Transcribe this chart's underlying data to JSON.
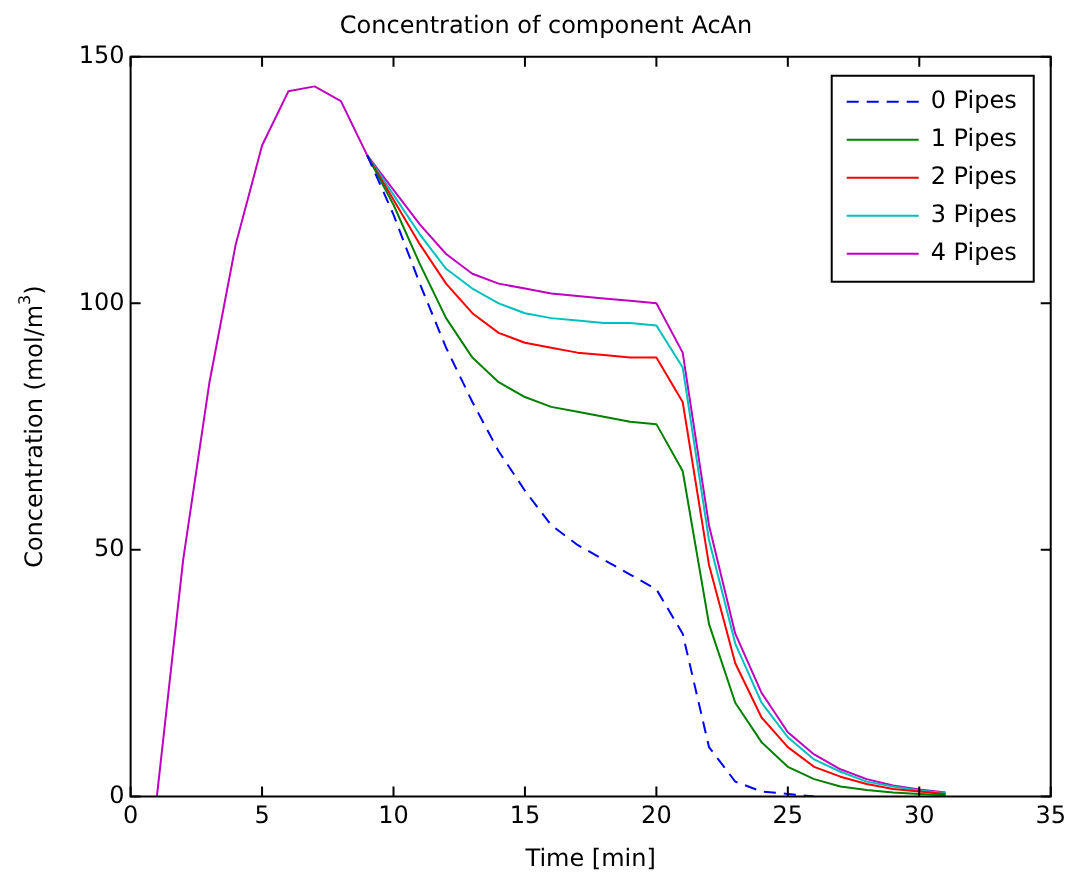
{
  "chart_data": {
    "type": "line",
    "title": "Concentration of component AcAn",
    "xlabel": "Time [min]",
    "ylabel": "Concentration (mol/m$^{3}$)",
    "x": [
      1,
      2,
      3,
      4,
      5,
      6,
      7,
      8,
      9,
      10,
      11,
      12,
      13,
      14,
      15,
      16,
      17,
      18,
      19,
      20,
      21,
      22,
      23,
      24,
      25,
      26,
      27,
      28,
      29,
      30,
      31
    ],
    "xlim": [
      0,
      35
    ],
    "xticks": [
      0,
      5,
      10,
      15,
      20,
      25,
      30,
      35
    ],
    "ylim": [
      0,
      150
    ],
    "yticks": [
      0,
      50,
      100,
      150
    ],
    "grid": false,
    "legend": "top right",
    "marker": "none",
    "series": [
      {
        "name": "0 Pipes",
        "color": "#0000ff",
        "line_style": "dashed",
        "values": [
          null,
          null,
          null,
          null,
          null,
          null,
          null,
          null,
          130,
          118,
          104,
          91,
          80,
          70,
          62,
          55,
          51,
          48,
          45,
          42,
          33,
          10,
          3,
          1,
          0.5,
          0,
          null,
          null,
          null,
          null,
          null
        ]
      },
      {
        "name": "1 Pipes",
        "color": "#008000",
        "line_style": "solid",
        "values": [
          null,
          null,
          null,
          null,
          null,
          null,
          null,
          null,
          130,
          120,
          108,
          97,
          89,
          84,
          81,
          79,
          78,
          77,
          76,
          75.5,
          66,
          35,
          19,
          11,
          6,
          3.5,
          2,
          1.3,
          0.8,
          0.5,
          0.3
        ]
      },
      {
        "name": "2 Pipes",
        "color": "#ff0000",
        "line_style": "solid",
        "values": [
          null,
          null,
          null,
          null,
          null,
          null,
          null,
          null,
          130,
          121,
          112,
          104,
          98,
          94,
          92,
          91,
          90,
          89.5,
          89,
          89,
          80,
          47,
          27,
          16,
          10,
          6,
          4,
          2.5,
          1.5,
          1,
          0.5
        ]
      },
      {
        "name": "3 Pipes",
        "color": "#00bfbf",
        "line_style": "solid",
        "values": [
          null,
          null,
          null,
          null,
          null,
          null,
          null,
          null,
          130,
          122,
          114,
          107,
          103,
          100,
          98,
          97,
          96.5,
          96,
          96,
          95.5,
          87,
          52,
          31,
          19,
          12,
          7.5,
          5,
          3,
          2,
          1.2,
          0.7
        ]
      },
      {
        "name": "4 Pipes",
        "color": "#bf00bf",
        "line_style": "solid",
        "values": [
          0,
          48,
          84,
          112,
          132,
          143,
          144,
          141,
          130,
          123,
          116,
          110,
          106,
          104,
          103,
          102,
          101.5,
          101,
          100.5,
          100,
          90,
          55,
          33,
          21,
          13,
          8.5,
          5.5,
          3.5,
          2.2,
          1.4,
          0.8
        ]
      }
    ]
  }
}
